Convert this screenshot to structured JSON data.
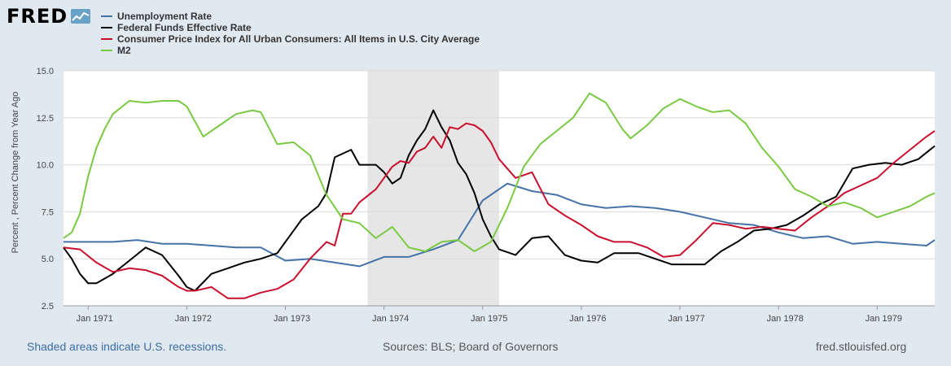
{
  "header": {
    "logo_text": "FRED",
    "logo_icon": "fred-graph-icon"
  },
  "colors": {
    "background": "#e1e9f0",
    "plot_background": "#ffffff",
    "recession_shade": "#e6e6e6",
    "grid": "#dcdcdc"
  },
  "footer": {
    "recession_note": "Shaded areas indicate U.S. recessions.",
    "sources": "Sources: BLS; Board of Governors",
    "site": "fred.stlouisfed.org"
  },
  "chart_data": {
    "type": "line",
    "ylabel": "Percent , Percent Change from Year Ago",
    "ylim": [
      2.5,
      15.0
    ],
    "yticks": [
      2.5,
      5.0,
      7.5,
      10.0,
      12.5,
      15.0
    ],
    "ytick_labels": [
      "2.5",
      "5.0",
      "7.5",
      "10.0",
      "12.5",
      "15.0"
    ],
    "xlim": [
      "1970-10",
      "1979-08"
    ],
    "xticks": [
      "1971-01",
      "1972-01",
      "1973-01",
      "1974-01",
      "1975-01",
      "1976-01",
      "1977-01",
      "1978-01",
      "1979-01"
    ],
    "xtick_labels": [
      "Jan 1971",
      "Jan 1972",
      "Jan 1973",
      "Jan 1974",
      "Jan 1975",
      "Jan 1976",
      "Jan 1977",
      "Jan 1978",
      "Jan 1979"
    ],
    "grid": true,
    "recessions": [
      {
        "start": "1973-11",
        "end": "1975-03"
      }
    ],
    "series": [
      {
        "name": "Unemployment Rate",
        "color": "#4572a7",
        "points": [
          [
            "1970-10",
            5.9
          ],
          [
            "1971-01",
            5.9
          ],
          [
            "1971-04",
            5.9
          ],
          [
            "1971-07",
            6.0
          ],
          [
            "1971-10",
            5.8
          ],
          [
            "1972-01",
            5.8
          ],
          [
            "1972-04",
            5.7
          ],
          [
            "1972-07",
            5.6
          ],
          [
            "1972-10",
            5.6
          ],
          [
            "1973-01",
            4.9
          ],
          [
            "1973-04",
            5.0
          ],
          [
            "1973-07",
            4.8
          ],
          [
            "1973-10",
            4.6
          ],
          [
            "1974-01",
            5.1
          ],
          [
            "1974-04",
            5.1
          ],
          [
            "1974-07",
            5.5
          ],
          [
            "1974-10",
            6.0
          ],
          [
            "1975-01",
            8.1
          ],
          [
            "1975-04",
            9.0
          ],
          [
            "1975-07",
            8.6
          ],
          [
            "1975-10",
            8.4
          ],
          [
            "1976-01",
            7.9
          ],
          [
            "1976-04",
            7.7
          ],
          [
            "1976-07",
            7.8
          ],
          [
            "1976-10",
            7.7
          ],
          [
            "1977-01",
            7.5
          ],
          [
            "1977-04",
            7.2
          ],
          [
            "1977-07",
            6.9
          ],
          [
            "1977-10",
            6.8
          ],
          [
            "1978-01",
            6.4
          ],
          [
            "1978-04",
            6.1
          ],
          [
            "1978-07",
            6.2
          ],
          [
            "1978-10",
            5.8
          ],
          [
            "1979-01",
            5.9
          ],
          [
            "1979-04",
            5.8
          ],
          [
            "1979-07",
            5.7
          ],
          [
            "1979-08",
            6.0
          ]
        ]
      },
      {
        "name": "Federal Funds Effective Rate",
        "color": "#000000",
        "points": [
          [
            "1970-10",
            5.6
          ],
          [
            "1970-11",
            5.0
          ],
          [
            "1970-12",
            4.2
          ],
          [
            "1971-01",
            3.7
          ],
          [
            "1971-02",
            3.7
          ],
          [
            "1971-04",
            4.2
          ],
          [
            "1971-06",
            4.9
          ],
          [
            "1971-08",
            5.6
          ],
          [
            "1971-10",
            5.2
          ],
          [
            "1971-12",
            4.1
          ],
          [
            "1972-01",
            3.5
          ],
          [
            "1972-02",
            3.3
          ],
          [
            "1972-04",
            4.2
          ],
          [
            "1972-06",
            4.5
          ],
          [
            "1972-08",
            4.8
          ],
          [
            "1972-10",
            5.0
          ],
          [
            "1972-12",
            5.3
          ],
          [
            "1973-01",
            5.9
          ],
          [
            "1973-03",
            7.1
          ],
          [
            "1973-05",
            7.8
          ],
          [
            "1973-06",
            8.5
          ],
          [
            "1973-07",
            10.4
          ],
          [
            "1973-09",
            10.8
          ],
          [
            "1973-10",
            10.0
          ],
          [
            "1973-12",
            10.0
          ],
          [
            "1974-01",
            9.6
          ],
          [
            "1974-02",
            9.0
          ],
          [
            "1974-03",
            9.3
          ],
          [
            "1974-04",
            10.5
          ],
          [
            "1974-05",
            11.3
          ],
          [
            "1974-06",
            11.9
          ],
          [
            "1974-07",
            12.9
          ],
          [
            "1974-08",
            12.0
          ],
          [
            "1974-09",
            11.3
          ],
          [
            "1974-10",
            10.1
          ],
          [
            "1974-11",
            9.5
          ],
          [
            "1974-12",
            8.5
          ],
          [
            "1975-01",
            7.1
          ],
          [
            "1975-02",
            6.2
          ],
          [
            "1975-03",
            5.5
          ],
          [
            "1975-05",
            5.2
          ],
          [
            "1975-07",
            6.1
          ],
          [
            "1975-09",
            6.2
          ],
          [
            "1975-11",
            5.2
          ],
          [
            "1976-01",
            4.9
          ],
          [
            "1976-03",
            4.8
          ],
          [
            "1976-05",
            5.3
          ],
          [
            "1976-08",
            5.3
          ],
          [
            "1976-10",
            5.0
          ],
          [
            "1976-12",
            4.7
          ],
          [
            "1977-02",
            4.7
          ],
          [
            "1977-04",
            4.7
          ],
          [
            "1977-06",
            5.4
          ],
          [
            "1977-08",
            5.9
          ],
          [
            "1977-10",
            6.5
          ],
          [
            "1977-12",
            6.6
          ],
          [
            "1978-02",
            6.8
          ],
          [
            "1978-04",
            7.3
          ],
          [
            "1978-06",
            7.9
          ],
          [
            "1978-08",
            8.3
          ],
          [
            "1978-10",
            9.8
          ],
          [
            "1978-12",
            10.0
          ],
          [
            "1979-02",
            10.1
          ],
          [
            "1979-04",
            10.0
          ],
          [
            "1979-06",
            10.3
          ],
          [
            "1979-08",
            11.0
          ]
        ]
      },
      {
        "name": "Consumer Price Index for All Urban Consumers: All Items in U.S. City Average",
        "color": "#c8102e",
        "points": [
          [
            "1970-10",
            5.6
          ],
          [
            "1970-12",
            5.5
          ],
          [
            "1971-02",
            4.8
          ],
          [
            "1971-04",
            4.3
          ],
          [
            "1971-06",
            4.5
          ],
          [
            "1971-08",
            4.4
          ],
          [
            "1971-10",
            4.1
          ],
          [
            "1971-12",
            3.5
          ],
          [
            "1972-01",
            3.3
          ],
          [
            "1972-02",
            3.3
          ],
          [
            "1972-04",
            3.5
          ],
          [
            "1972-06",
            2.9
          ],
          [
            "1972-08",
            2.9
          ],
          [
            "1972-10",
            3.2
          ],
          [
            "1972-12",
            3.4
          ],
          [
            "1973-02",
            3.9
          ],
          [
            "1973-04",
            5.0
          ],
          [
            "1973-06",
            5.9
          ],
          [
            "1973-07",
            5.7
          ],
          [
            "1973-08",
            7.4
          ],
          [
            "1973-09",
            7.4
          ],
          [
            "1973-10",
            8.0
          ],
          [
            "1973-12",
            8.7
          ],
          [
            "1974-02",
            9.9
          ],
          [
            "1974-03",
            10.2
          ],
          [
            "1974-04",
            10.1
          ],
          [
            "1974-05",
            10.7
          ],
          [
            "1974-06",
            10.9
          ],
          [
            "1974-07",
            11.5
          ],
          [
            "1974-08",
            10.9
          ],
          [
            "1974-09",
            12.0
          ],
          [
            "1974-10",
            11.9
          ],
          [
            "1974-11",
            12.2
          ],
          [
            "1974-12",
            12.1
          ],
          [
            "1975-01",
            11.8
          ],
          [
            "1975-02",
            11.2
          ],
          [
            "1975-03",
            10.3
          ],
          [
            "1975-05",
            9.3
          ],
          [
            "1975-07",
            9.6
          ],
          [
            "1975-09",
            7.9
          ],
          [
            "1975-11",
            7.3
          ],
          [
            "1976-01",
            6.8
          ],
          [
            "1976-03",
            6.2
          ],
          [
            "1976-05",
            5.9
          ],
          [
            "1976-07",
            5.9
          ],
          [
            "1976-09",
            5.6
          ],
          [
            "1976-11",
            5.1
          ],
          [
            "1977-01",
            5.2
          ],
          [
            "1977-03",
            6.0
          ],
          [
            "1977-05",
            6.9
          ],
          [
            "1977-07",
            6.8
          ],
          [
            "1977-09",
            6.6
          ],
          [
            "1977-11",
            6.7
          ],
          [
            "1978-01",
            6.6
          ],
          [
            "1978-03",
            6.5
          ],
          [
            "1978-05",
            7.2
          ],
          [
            "1978-07",
            7.8
          ],
          [
            "1978-09",
            8.5
          ],
          [
            "1978-11",
            8.9
          ],
          [
            "1979-01",
            9.3
          ],
          [
            "1979-03",
            10.1
          ],
          [
            "1979-05",
            10.8
          ],
          [
            "1979-07",
            11.5
          ],
          [
            "1979-08",
            11.8
          ]
        ]
      },
      {
        "name": "M2",
        "color": "#7ac943",
        "points": [
          [
            "1970-10",
            6.1
          ],
          [
            "1970-11",
            6.4
          ],
          [
            "1970-12",
            7.4
          ],
          [
            "1971-01",
            9.4
          ],
          [
            "1971-02",
            10.9
          ],
          [
            "1971-03",
            11.9
          ],
          [
            "1971-04",
            12.7
          ],
          [
            "1971-06",
            13.4
          ],
          [
            "1971-08",
            13.3
          ],
          [
            "1971-10",
            13.4
          ],
          [
            "1971-12",
            13.4
          ],
          [
            "1972-01",
            13.1
          ],
          [
            "1972-03",
            11.5
          ],
          [
            "1972-05",
            12.1
          ],
          [
            "1972-07",
            12.7
          ],
          [
            "1972-09",
            12.9
          ],
          [
            "1972-10",
            12.8
          ],
          [
            "1972-12",
            11.1
          ],
          [
            "1973-02",
            11.2
          ],
          [
            "1973-04",
            10.5
          ],
          [
            "1973-06",
            8.4
          ],
          [
            "1973-08",
            7.1
          ],
          [
            "1973-10",
            6.9
          ],
          [
            "1973-12",
            6.1
          ],
          [
            "1974-02",
            6.7
          ],
          [
            "1974-04",
            5.6
          ],
          [
            "1974-06",
            5.4
          ],
          [
            "1974-08",
            5.9
          ],
          [
            "1974-10",
            6.0
          ],
          [
            "1974-12",
            5.4
          ],
          [
            "1975-02",
            5.9
          ],
          [
            "1975-04",
            7.7
          ],
          [
            "1975-06",
            9.9
          ],
          [
            "1975-08",
            11.1
          ],
          [
            "1975-10",
            11.8
          ],
          [
            "1975-12",
            12.5
          ],
          [
            "1976-02",
            13.8
          ],
          [
            "1976-04",
            13.3
          ],
          [
            "1976-06",
            11.9
          ],
          [
            "1976-07",
            11.4
          ],
          [
            "1976-09",
            12.1
          ],
          [
            "1976-11",
            13.0
          ],
          [
            "1977-01",
            13.5
          ],
          [
            "1977-03",
            13.1
          ],
          [
            "1977-05",
            12.8
          ],
          [
            "1977-07",
            12.9
          ],
          [
            "1977-09",
            12.2
          ],
          [
            "1977-11",
            10.9
          ],
          [
            "1978-01",
            9.9
          ],
          [
            "1978-03",
            8.7
          ],
          [
            "1978-05",
            8.3
          ],
          [
            "1978-07",
            7.8
          ],
          [
            "1978-09",
            8.0
          ],
          [
            "1978-11",
            7.7
          ],
          [
            "1979-01",
            7.2
          ],
          [
            "1979-03",
            7.5
          ],
          [
            "1979-05",
            7.8
          ],
          [
            "1979-07",
            8.3
          ],
          [
            "1979-08",
            8.5
          ]
        ]
      }
    ]
  }
}
